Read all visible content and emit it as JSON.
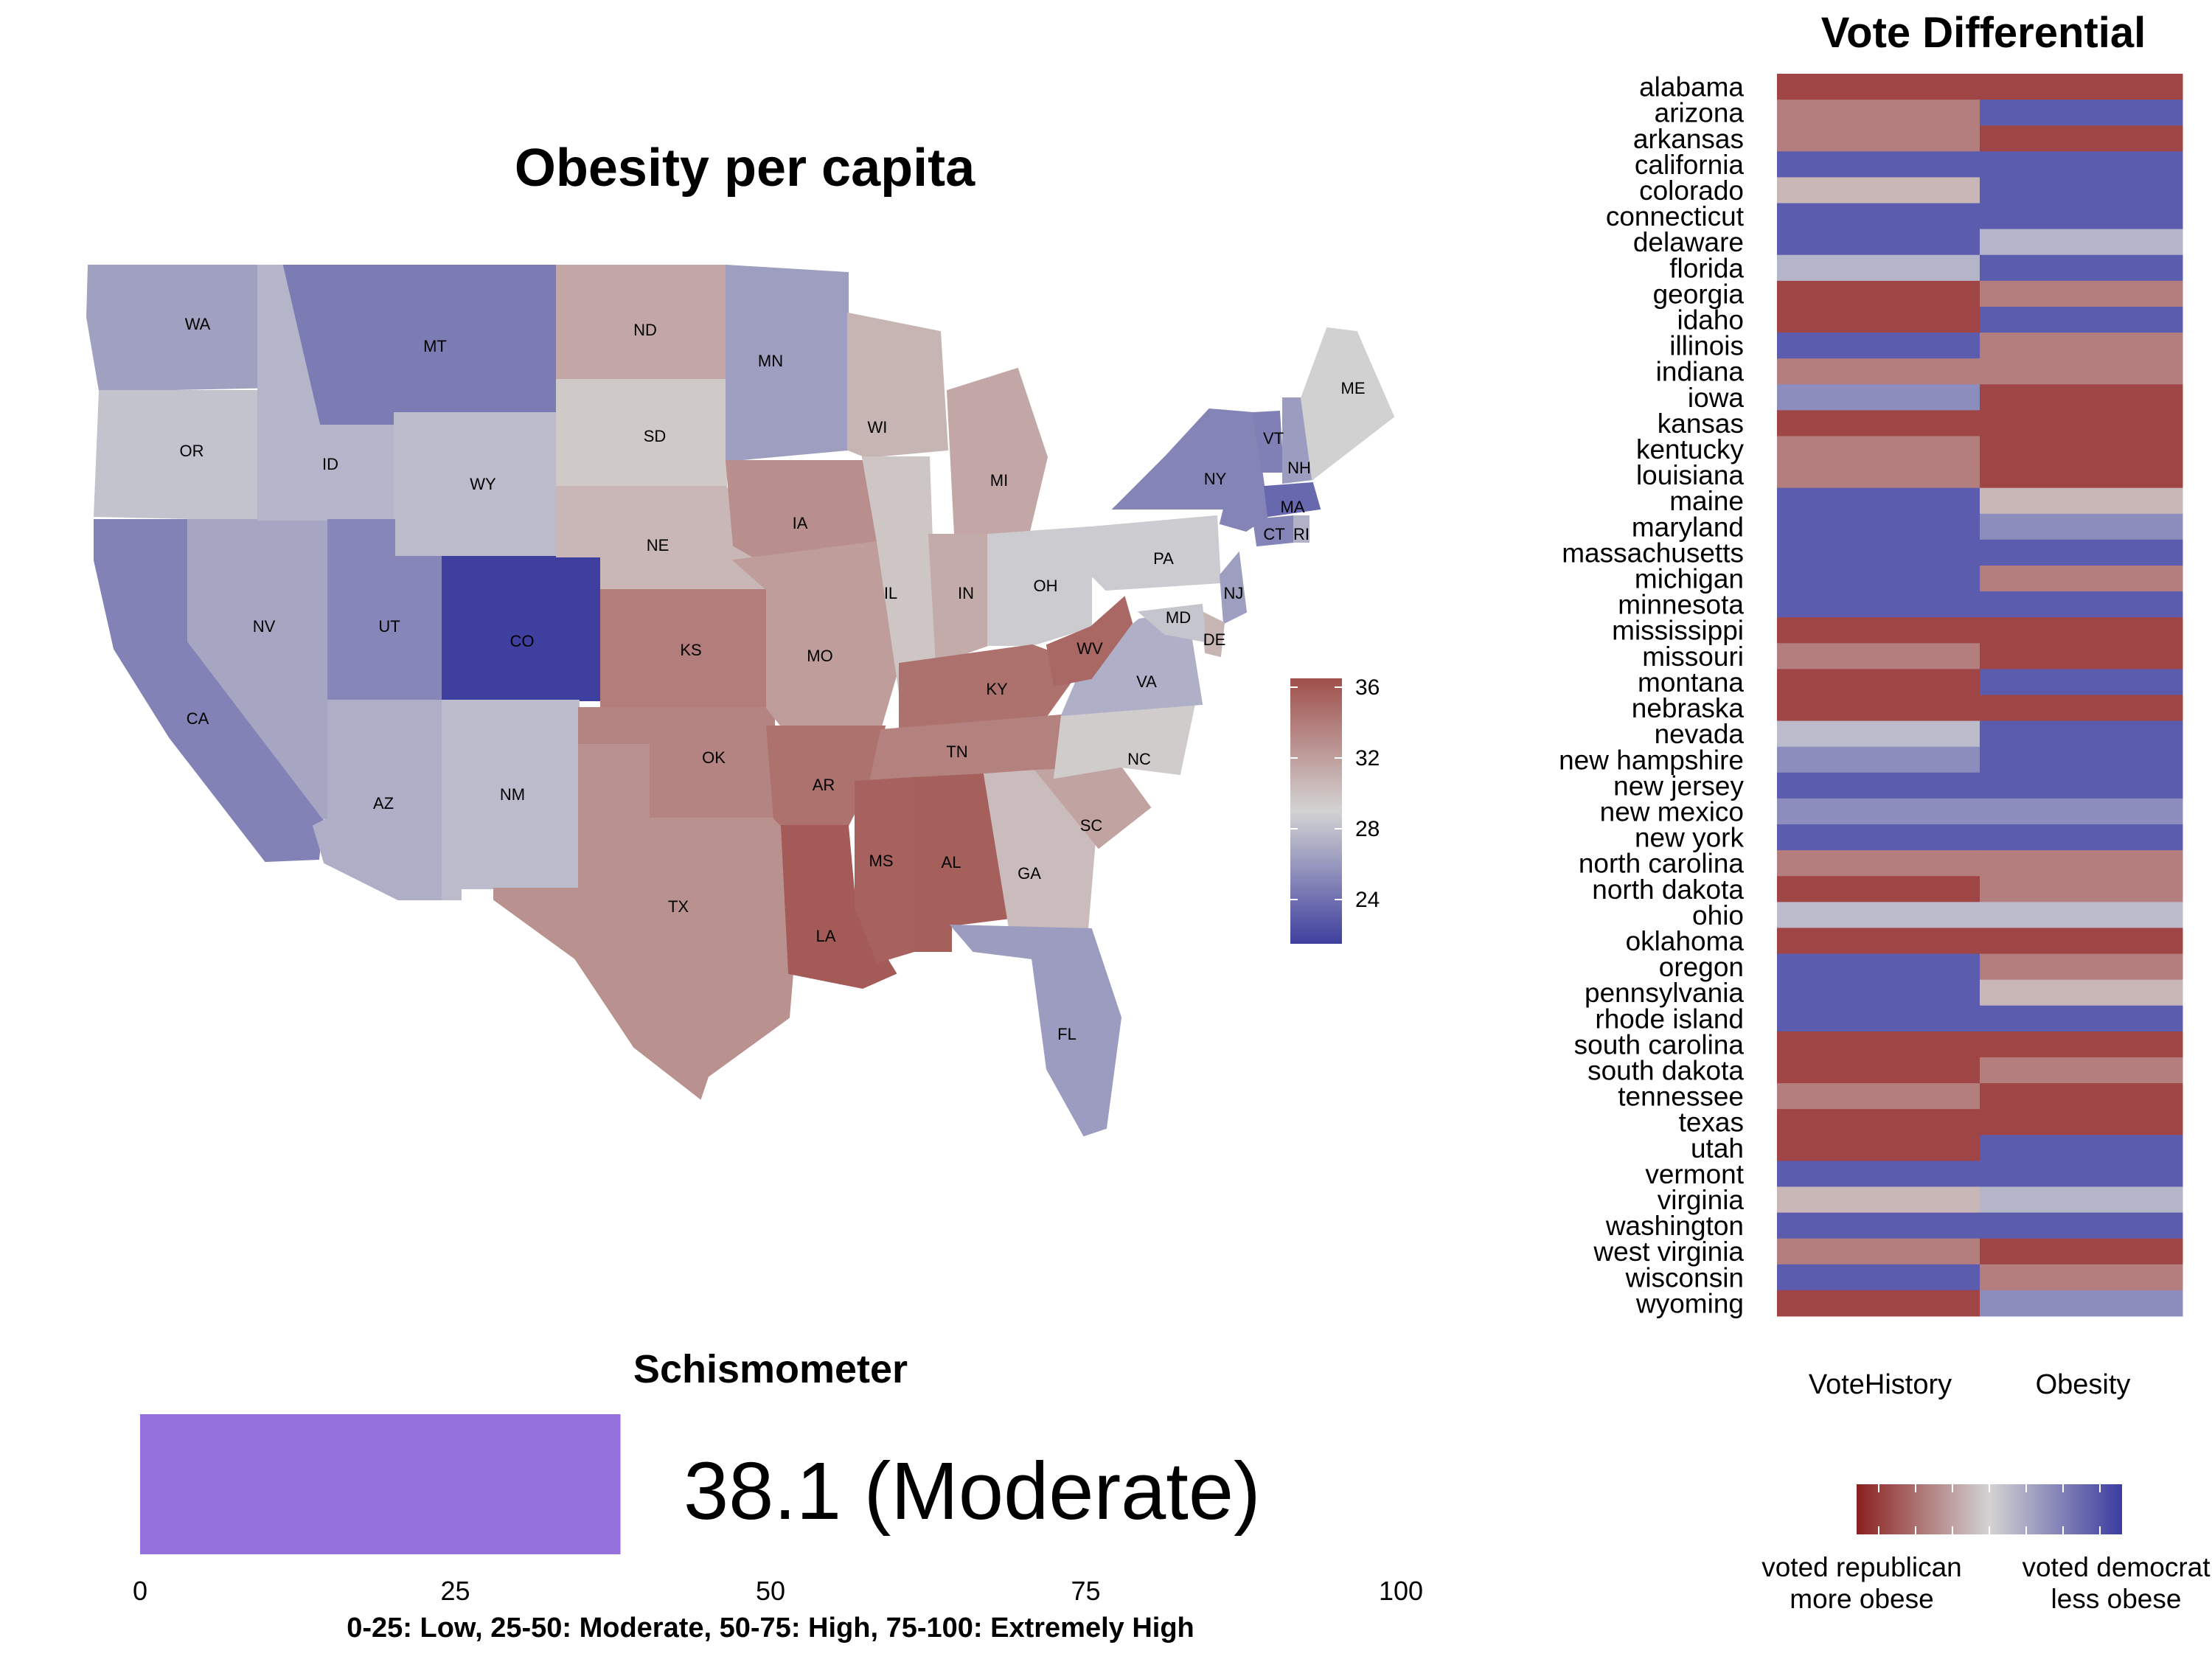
{
  "chart_data": [
    {
      "type": "choropleth",
      "title": "Obesity per capita",
      "legend_ticks": [
        36,
        32,
        28,
        24
      ],
      "legend_range": [
        21.5,
        36.5
      ],
      "states": [
        {
          "abbr": "WA",
          "value": 26.4
        },
        {
          "abbr": "OR",
          "value": 28.2
        },
        {
          "abbr": "CA",
          "value": 24.9
        },
        {
          "abbr": "NV",
          "value": 26.7
        },
        {
          "abbr": "ID",
          "value": 27.5
        },
        {
          "abbr": "MT",
          "value": 24.6
        },
        {
          "abbr": "WY",
          "value": 27.8
        },
        {
          "abbr": "UT",
          "value": 25.1
        },
        {
          "abbr": "AZ",
          "value": 27.1
        },
        {
          "abbr": "CO",
          "value": 21.5
        },
        {
          "abbr": "NM",
          "value": 27.8
        },
        {
          "abbr": "ND",
          "value": 31.5
        },
        {
          "abbr": "SD",
          "value": 29.6
        },
        {
          "abbr": "NE",
          "value": 30.6
        },
        {
          "abbr": "KS",
          "value": 33.9
        },
        {
          "abbr": "OK",
          "value": 33.5
        },
        {
          "abbr": "TX",
          "value": 32.8
        },
        {
          "abbr": "MN",
          "value": 26.3
        },
        {
          "abbr": "IA",
          "value": 32.9
        },
        {
          "abbr": "MO",
          "value": 32.1
        },
        {
          "abbr": "AR",
          "value": 34.6
        },
        {
          "abbr": "LA",
          "value": 35.9
        },
        {
          "abbr": "WI",
          "value": 30.7
        },
        {
          "abbr": "IL",
          "value": 29.8
        },
        {
          "abbr": "MI",
          "value": 31.5
        },
        {
          "abbr": "IN",
          "value": 31.3
        },
        {
          "abbr": "OH",
          "value": 28.6
        },
        {
          "abbr": "KY",
          "value": 34.6
        },
        {
          "abbr": "TN",
          "value": 33.7
        },
        {
          "abbr": "MS",
          "value": 35.5
        },
        {
          "abbr": "AL",
          "value": 35.6
        },
        {
          "abbr": "GA",
          "value": 30.3
        },
        {
          "abbr": "FL",
          "value": 26.2
        },
        {
          "abbr": "SC",
          "value": 31.7
        },
        {
          "abbr": "NC",
          "value": 29.4
        },
        {
          "abbr": "VA",
          "value": 27.2
        },
        {
          "abbr": "WV",
          "value": 35.1
        },
        {
          "abbr": "PA",
          "value": 28.6
        },
        {
          "abbr": "NY",
          "value": 25.0
        },
        {
          "abbr": "VT",
          "value": 24.8
        },
        {
          "abbr": "NH",
          "value": 26.2
        },
        {
          "abbr": "ME",
          "value": 28.9
        },
        {
          "abbr": "MA",
          "value": 23.6
        },
        {
          "abbr": "CT",
          "value": 25.0
        },
        {
          "abbr": "RI",
          "value": 27.3
        },
        {
          "abbr": "NJ",
          "value": 26.3
        },
        {
          "abbr": "DE",
          "value": 30.7
        },
        {
          "abbr": "MD",
          "value": 28.3
        }
      ]
    },
    {
      "type": "heatmap",
      "title": "Vote Differential",
      "columns": [
        "VoteHistory",
        "Obesity"
      ],
      "rows": [
        "alabama",
        "arizona",
        "arkansas",
        "california",
        "colorado",
        "connecticut",
        "delaware",
        "florida",
        "georgia",
        "idaho",
        "illinois",
        "indiana",
        "iowa",
        "kansas",
        "kentucky",
        "louisiana",
        "maine",
        "maryland",
        "massachusetts",
        "michigan",
        "minnesota",
        "mississippi",
        "missouri",
        "montana",
        "nebraska",
        "nevada",
        "new hampshire",
        "new jersey",
        "new mexico",
        "new york",
        "north carolina",
        "north dakota",
        "ohio",
        "oklahoma",
        "oregon",
        "pennsylvania",
        "rhode island",
        "south carolina",
        "south dakota",
        "tennessee",
        "texas",
        "utah",
        "vermont",
        "virginia",
        "washington",
        "west virginia",
        "wisconsin",
        "wyoming"
      ],
      "values": [
        [
          -1,
          -1
        ],
        [
          -0.6,
          1
        ],
        [
          -0.6,
          -1
        ],
        [
          1,
          1
        ],
        [
          -0.2,
          1
        ],
        [
          1,
          1
        ],
        [
          1,
          0.25
        ],
        [
          0.25,
          1
        ],
        [
          -1,
          -0.6
        ],
        [
          -1,
          1
        ],
        [
          1,
          -0.6
        ],
        [
          -0.6,
          -0.6
        ],
        [
          0.6,
          -1
        ],
        [
          -1,
          -1
        ],
        [
          -0.6,
          -1
        ],
        [
          -0.6,
          -1
        ],
        [
          1,
          -0.2
        ],
        [
          1,
          0.6
        ],
        [
          1,
          1
        ],
        [
          1,
          -0.6
        ],
        [
          1,
          1
        ],
        [
          -1,
          -1
        ],
        [
          -0.6,
          -1
        ],
        [
          -1,
          1
        ],
        [
          -1,
          -1
        ],
        [
          0.2,
          1
        ],
        [
          0.6,
          1
        ],
        [
          1,
          1
        ],
        [
          0.6,
          0.6
        ],
        [
          1,
          1
        ],
        [
          -0.6,
          -0.6
        ],
        [
          -1,
          -0.6
        ],
        [
          0.2,
          0.2
        ],
        [
          -1,
          -1
        ],
        [
          1,
          -0.6
        ],
        [
          1,
          -0.2
        ],
        [
          1,
          1
        ],
        [
          -1,
          -1
        ],
        [
          -1,
          -0.6
        ],
        [
          -0.6,
          -1
        ],
        [
          -1,
          -1
        ],
        [
          -1,
          1
        ],
        [
          1,
          1
        ],
        [
          -0.2,
          0.25
        ],
        [
          1,
          1
        ],
        [
          -0.6,
          -1
        ],
        [
          1,
          -0.6
        ],
        [
          -1,
          0.6
        ]
      ],
      "legend_labels": [
        {
          "line1": "voted republican",
          "line2": "more obese"
        },
        {
          "line1": "voted democrat",
          "line2": "less obese"
        }
      ]
    },
    {
      "type": "bar",
      "title": "Schismometer",
      "value": 38.1,
      "value_label": "38.1 (Moderate)",
      "xlim": [
        0,
        100
      ],
      "ticks": [
        0,
        25,
        50,
        75,
        100
      ],
      "caption": "0-25: Low, 25-50: Moderate, 50-75: High, 75-100: Extremely High",
      "color": "#9370DB"
    }
  ],
  "colors": {
    "low": "#3F3F9F",
    "mid": "#D3D3D3",
    "high": "#A0504C"
  }
}
